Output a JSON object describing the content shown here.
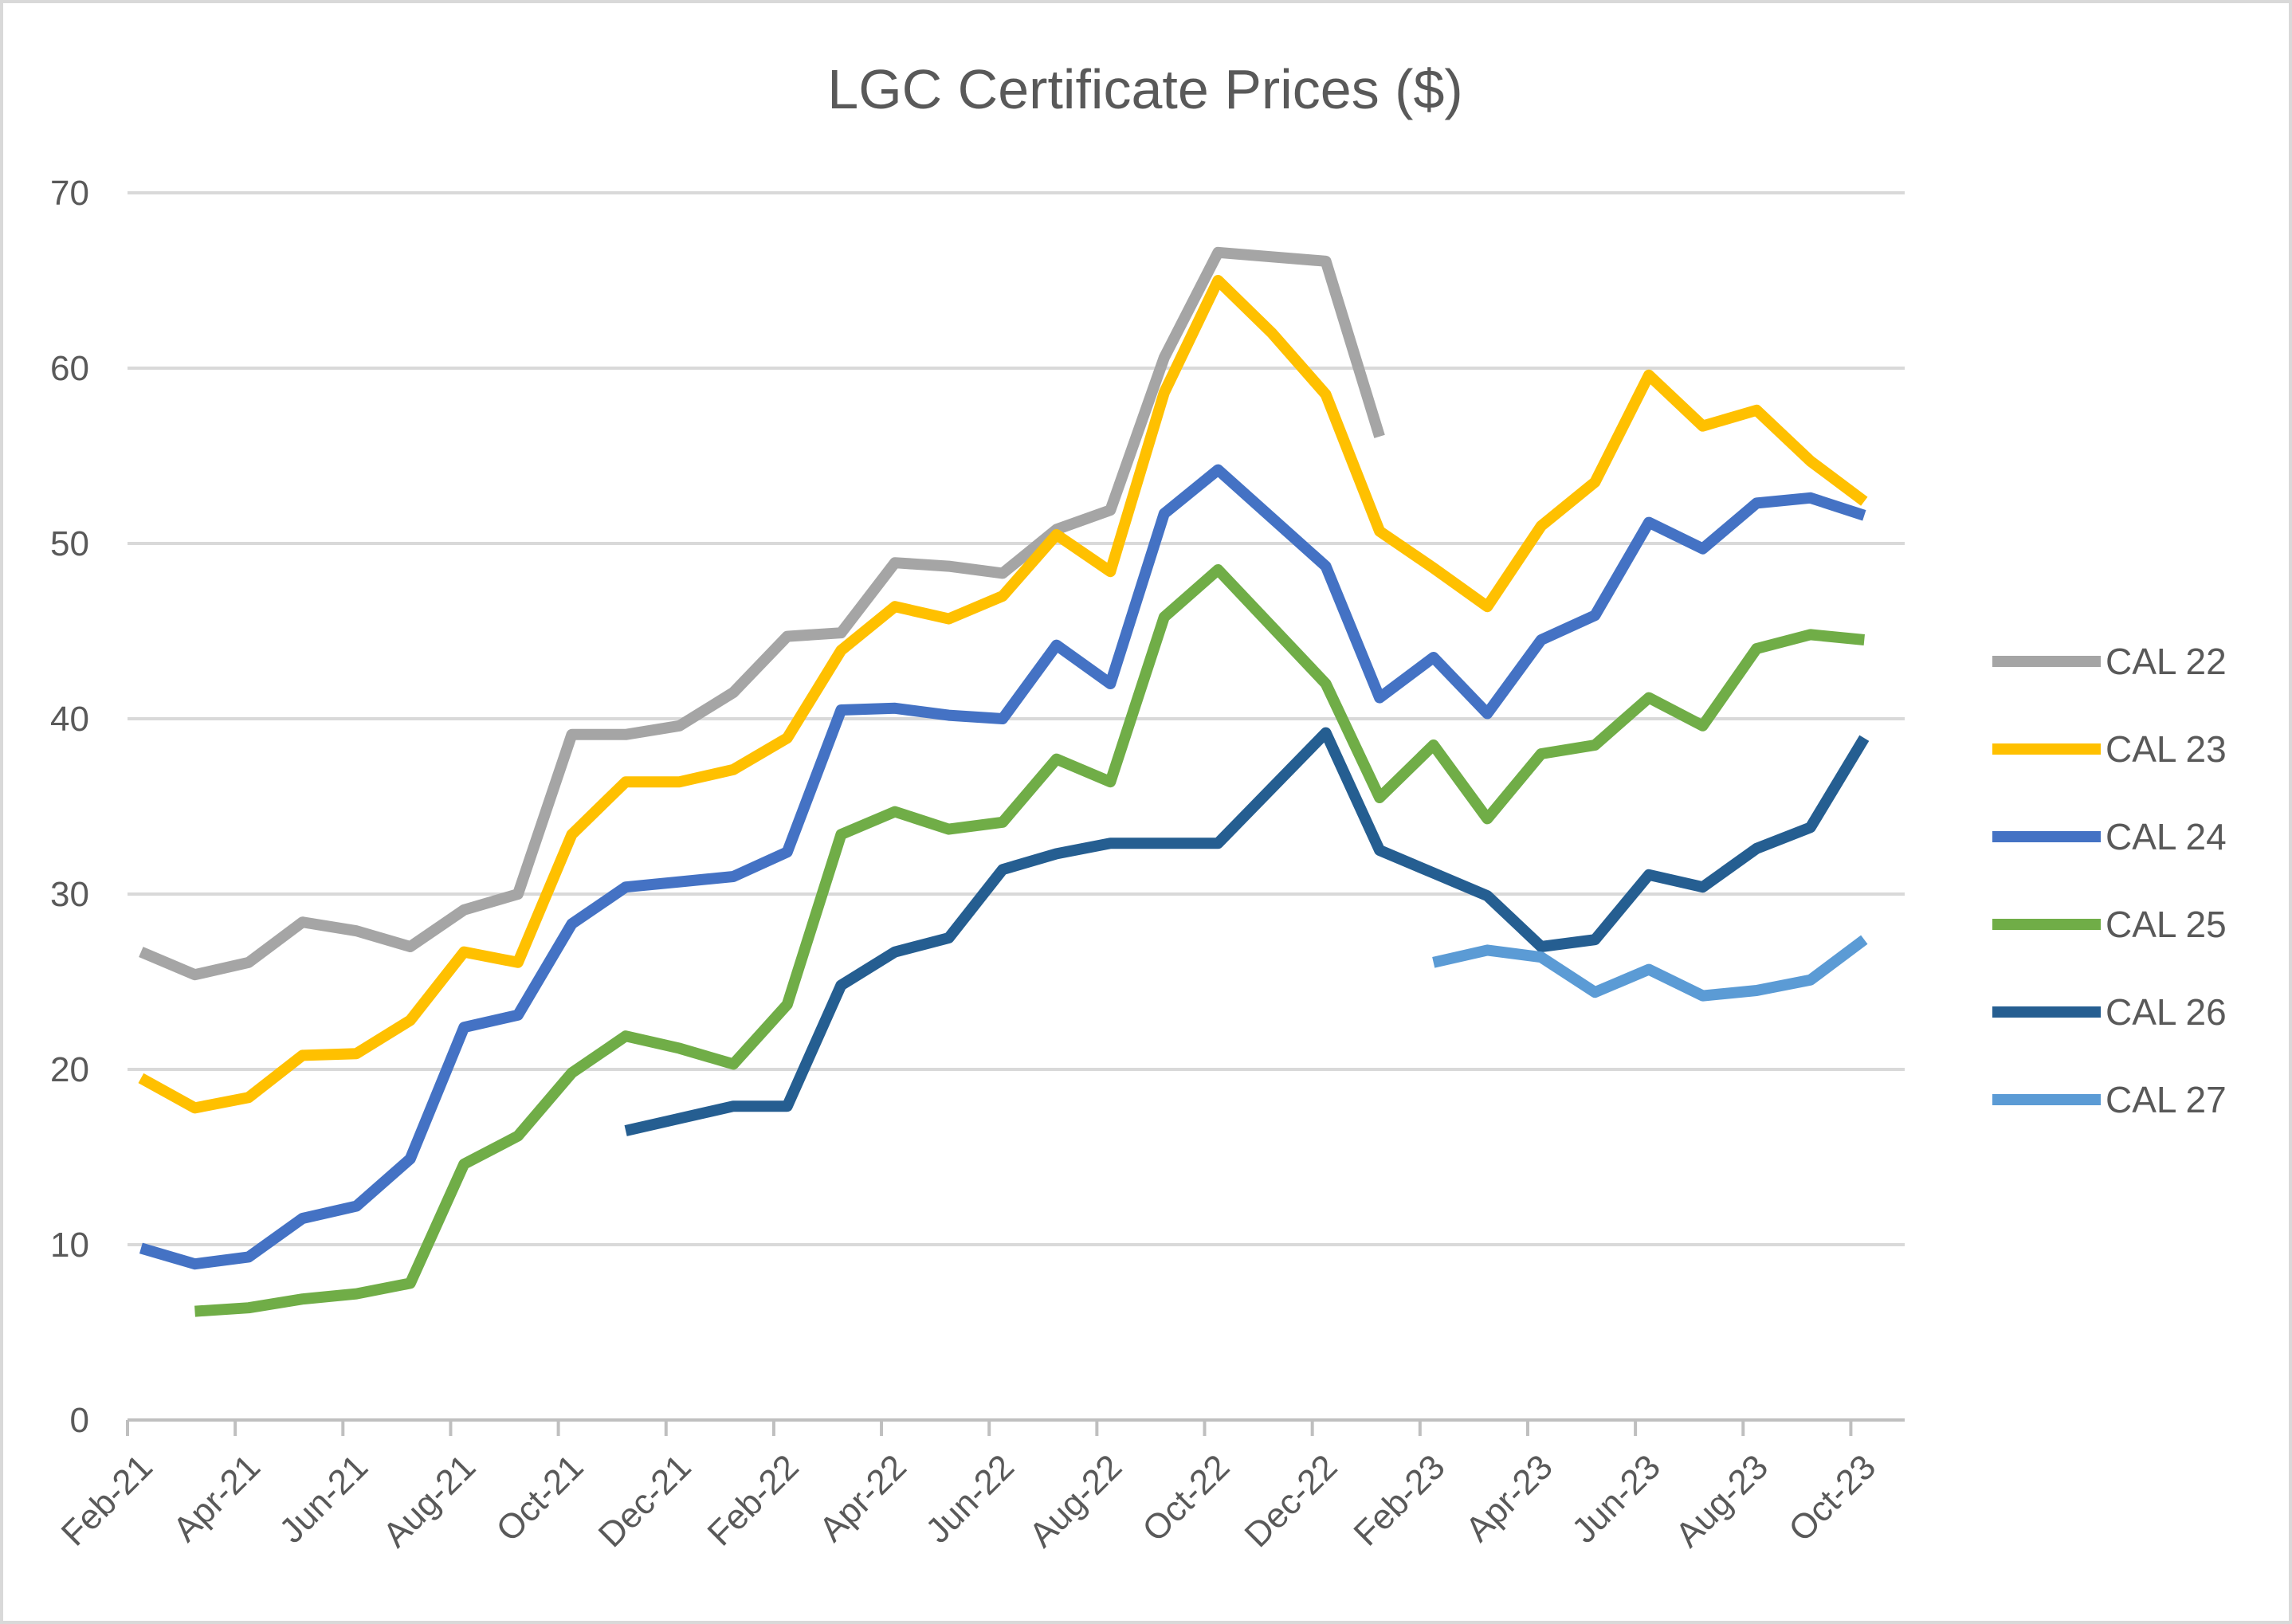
{
  "chart_data": {
    "type": "line",
    "title": "LGC Certificate Prices ($)",
    "xlabel": "",
    "ylabel": "",
    "ylim": [
      0,
      70
    ],
    "yticks": [
      0,
      10,
      20,
      30,
      40,
      50,
      60,
      70
    ],
    "x_tick_labels": [
      "Feb-21",
      "Apr-21",
      "Jun-21",
      "Aug-21",
      "Oct-21",
      "Dec-21",
      "Feb-22",
      "Apr-22",
      "Jun-22",
      "Aug-22",
      "Oct-22",
      "Dec-22",
      "Feb-23",
      "Apr-23",
      "Jun-23",
      "Aug-23",
      "Oct-23"
    ],
    "months_count": 33,
    "grid": true,
    "legend_position": "right",
    "series": [
      {
        "name": "CAL 22",
        "color": "#a5a5a5",
        "points": [
          [
            0.25,
            26.7
          ],
          [
            1.25,
            25.4
          ],
          [
            2.25,
            26.1
          ],
          [
            3.25,
            28.4
          ],
          [
            4.25,
            27.9
          ],
          [
            5.25,
            27.0
          ],
          [
            6.25,
            29.1
          ],
          [
            7.25,
            30.0
          ],
          [
            8.25,
            39.1
          ],
          [
            9.25,
            39.1
          ],
          [
            10.25,
            39.6
          ],
          [
            11.25,
            41.5
          ],
          [
            12.25,
            44.7
          ],
          [
            13.25,
            44.9
          ],
          [
            14.25,
            48.9
          ],
          [
            15.25,
            48.7
          ],
          [
            16.25,
            48.3
          ],
          [
            17.25,
            50.8
          ],
          [
            18.25,
            51.9
          ],
          [
            19.25,
            60.6
          ],
          [
            20.25,
            66.6
          ],
          [
            22.25,
            66.1
          ],
          [
            23.25,
            56.1
          ]
        ]
      },
      {
        "name": "CAL 23",
        "color": "#ffc000",
        "points": [
          [
            0.25,
            19.5
          ],
          [
            1.25,
            17.8
          ],
          [
            2.25,
            18.4
          ],
          [
            3.25,
            20.8
          ],
          [
            4.25,
            20.9
          ],
          [
            5.25,
            22.8
          ],
          [
            6.25,
            26.7
          ],
          [
            7.25,
            26.1
          ],
          [
            8.25,
            33.4
          ],
          [
            9.25,
            36.4
          ],
          [
            10.25,
            36.4
          ],
          [
            11.25,
            37.1
          ],
          [
            12.25,
            38.9
          ],
          [
            13.25,
            43.9
          ],
          [
            14.25,
            46.4
          ],
          [
            15.25,
            45.7
          ],
          [
            16.25,
            47.0
          ],
          [
            17.25,
            50.5
          ],
          [
            18.25,
            48.4
          ],
          [
            19.25,
            58.6
          ],
          [
            20.25,
            65.0
          ],
          [
            21.25,
            62.0
          ],
          [
            22.25,
            58.5
          ],
          [
            23.25,
            50.7
          ],
          [
            24.25,
            48.6
          ],
          [
            25.25,
            46.4
          ],
          [
            26.25,
            51.0
          ],
          [
            27.25,
            53.5
          ],
          [
            28.25,
            59.6
          ],
          [
            29.25,
            56.7
          ],
          [
            30.25,
            57.6
          ],
          [
            31.25,
            54.7
          ],
          [
            32.25,
            52.4
          ]
        ]
      },
      {
        "name": "CAL 24",
        "color": "#4472c4",
        "points": [
          [
            0.25,
            9.8
          ],
          [
            1.25,
            8.9
          ],
          [
            2.25,
            9.3
          ],
          [
            3.25,
            11.5
          ],
          [
            4.25,
            12.2
          ],
          [
            5.25,
            14.9
          ],
          [
            6.25,
            22.4
          ],
          [
            7.25,
            23.1
          ],
          [
            8.25,
            28.3
          ],
          [
            9.25,
            30.4
          ],
          [
            10.25,
            30.7
          ],
          [
            11.25,
            31.0
          ],
          [
            12.25,
            32.4
          ],
          [
            13.25,
            40.5
          ],
          [
            14.25,
            40.6
          ],
          [
            15.25,
            40.2
          ],
          [
            16.25,
            40.0
          ],
          [
            17.25,
            44.2
          ],
          [
            18.25,
            42.0
          ],
          [
            19.25,
            51.7
          ],
          [
            20.25,
            54.2
          ],
          [
            22.25,
            48.7
          ],
          [
            23.25,
            41.2
          ],
          [
            24.25,
            43.5
          ],
          [
            25.25,
            40.3
          ],
          [
            26.25,
            44.5
          ],
          [
            27.25,
            45.9
          ],
          [
            28.25,
            51.2
          ],
          [
            29.25,
            49.7
          ],
          [
            30.25,
            52.3
          ],
          [
            31.25,
            52.6
          ],
          [
            32.25,
            51.6
          ]
        ]
      },
      {
        "name": "CAL 25",
        "color": "#70ad47",
        "points": [
          [
            1.25,
            6.2
          ],
          [
            2.25,
            6.4
          ],
          [
            3.25,
            6.9
          ],
          [
            4.25,
            7.2
          ],
          [
            5.25,
            7.8
          ],
          [
            6.25,
            14.6
          ],
          [
            7.25,
            16.2
          ],
          [
            8.25,
            19.8
          ],
          [
            9.25,
            21.9
          ],
          [
            10.25,
            21.2
          ],
          [
            11.25,
            20.3
          ],
          [
            12.25,
            23.7
          ],
          [
            13.25,
            33.4
          ],
          [
            14.25,
            34.7
          ],
          [
            15.25,
            33.7
          ],
          [
            16.25,
            34.1
          ],
          [
            17.25,
            37.7
          ],
          [
            18.25,
            36.4
          ],
          [
            19.25,
            45.8
          ],
          [
            20.25,
            48.5
          ],
          [
            22.25,
            42.0
          ],
          [
            23.25,
            35.5
          ],
          [
            24.25,
            38.5
          ],
          [
            25.25,
            34.3
          ],
          [
            26.25,
            38.0
          ],
          [
            27.25,
            38.5
          ],
          [
            28.25,
            41.2
          ],
          [
            29.25,
            39.6
          ],
          [
            30.25,
            44.0
          ],
          [
            31.25,
            44.8
          ],
          [
            32.25,
            44.5
          ]
        ]
      },
      {
        "name": "CAL 26",
        "color": "#255e91",
        "points": [
          [
            9.25,
            16.5
          ],
          [
            10.25,
            17.2
          ],
          [
            11.25,
            17.9
          ],
          [
            12.25,
            17.9
          ],
          [
            13.25,
            24.8
          ],
          [
            14.25,
            26.7
          ],
          [
            15.25,
            27.5
          ],
          [
            16.25,
            31.4
          ],
          [
            17.25,
            32.3
          ],
          [
            18.25,
            32.9
          ],
          [
            19.25,
            32.9
          ],
          [
            20.25,
            32.9
          ],
          [
            22.25,
            39.2
          ],
          [
            23.25,
            32.5
          ],
          [
            24.25,
            31.2
          ],
          [
            25.25,
            29.9
          ],
          [
            26.25,
            27.0
          ],
          [
            27.25,
            27.4
          ],
          [
            28.25,
            31.1
          ],
          [
            29.25,
            30.4
          ],
          [
            30.25,
            32.6
          ],
          [
            31.25,
            33.8
          ],
          [
            32.25,
            38.9
          ]
        ]
      },
      {
        "name": "CAL 27",
        "color": "#5b9bd5",
        "points": [
          [
            24.25,
            26.1
          ],
          [
            25.25,
            26.8
          ],
          [
            26.25,
            26.4
          ],
          [
            27.25,
            24.4
          ],
          [
            28.25,
            25.7
          ],
          [
            29.25,
            24.2
          ],
          [
            30.25,
            24.5
          ],
          [
            31.25,
            25.1
          ],
          [
            32.25,
            27.4
          ]
        ]
      }
    ]
  }
}
